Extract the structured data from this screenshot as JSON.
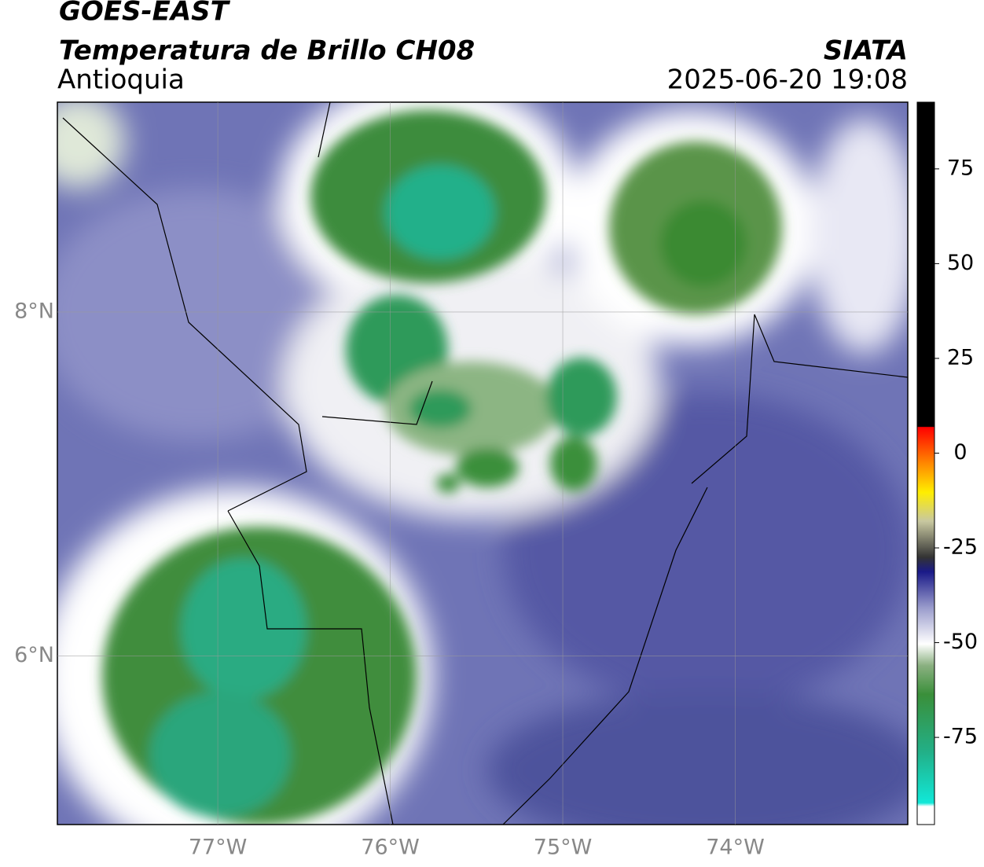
{
  "header": {
    "title": "GOES-EAST",
    "subtitle": "Temperatura de Brillo CH08",
    "region": "Antioquia",
    "source": "SIATA",
    "datetime": "2025-06-20 19:08"
  },
  "map": {
    "xlim": [
      -77.93,
      -73.0
    ],
    "ylim": [
      5.02,
      9.22
    ],
    "grid": true,
    "xticks": [
      {
        "value": -77,
        "label": "77°W"
      },
      {
        "value": -76,
        "label": "76°W"
      },
      {
        "value": -75,
        "label": "75°W"
      },
      {
        "value": -74,
        "label": "74°W"
      }
    ],
    "yticks": [
      {
        "value": 8,
        "label": "8°N"
      },
      {
        "value": 6,
        "label": "6°N"
      }
    ]
  },
  "colorbar": {
    "lim": [
      -98,
      92.6
    ],
    "ticks": [
      75,
      50,
      25,
      0,
      -25,
      -50,
      -75
    ]
  }
}
